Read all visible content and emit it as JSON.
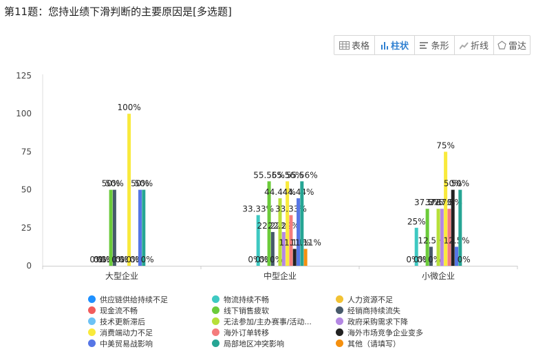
{
  "question": {
    "title": "第11题：您持业绩下滑判断的主要原因是[多选题]"
  },
  "toolbar": {
    "buttons": [
      {
        "label": "表格",
        "icon": "table-icon",
        "active": false
      },
      {
        "label": "柱状",
        "icon": "bar-chart-icon",
        "active": true
      },
      {
        "label": "条形",
        "icon": "horizontal-bar-icon",
        "active": false
      },
      {
        "label": "折线",
        "icon": "line-chart-icon",
        "active": false
      },
      {
        "label": "雷达",
        "icon": "radar-icon",
        "active": false
      }
    ]
  },
  "chart_data": {
    "type": "bar",
    "categories": [
      "大型企业",
      "中型企业",
      "小微企业"
    ],
    "ylim": [
      0,
      125
    ],
    "yticks": [
      0,
      25,
      50,
      75,
      100,
      125
    ],
    "grid": false,
    "legend_position": "bottom",
    "series": [
      {
        "name": "供应链供给持续不足",
        "color": "#1e90ff",
        "values": [
          0,
          0,
          0
        ]
      },
      {
        "name": "物流持续不畅",
        "color": "#3ec9c2",
        "values": [
          0,
          33.33,
          25
        ]
      },
      {
        "name": "人力资源不足",
        "color": "#f2c233",
        "values": [
          0,
          0,
          0
        ]
      },
      {
        "name": "现金流不畅",
        "color": "#f25c5c",
        "values": [
          0,
          0,
          0
        ]
      },
      {
        "name": "线下销售疲软",
        "color": "#6bcb3a",
        "values": [
          50,
          55.56,
          37.5
        ]
      },
      {
        "name": "经销商持续流失",
        "color": "#475a6a",
        "values": [
          50,
          22.22,
          12.5
        ]
      },
      {
        "name": "技术更新滞后",
        "color": "#6cc2f5",
        "values": [
          0,
          0,
          0
        ]
      },
      {
        "name": "无法参加/主办赛事/活动...",
        "color": "#b7e039",
        "values": [
          0,
          44.44,
          37.5
        ]
      },
      {
        "name": "政府采购需求下降",
        "color": "#b487e3",
        "values": [
          0,
          22.22,
          37.5
        ]
      },
      {
        "name": "消费端动力不足",
        "color": "#f9ea3c",
        "values": [
          100,
          55.56,
          75
        ]
      },
      {
        "name": "海外订单转移",
        "color": "#f47c7c",
        "values": [
          0,
          33.33,
          37.5
        ]
      },
      {
        "name": "海外市场竞争企业变多",
        "color": "#222222",
        "values": [
          0,
          11.11,
          50
        ]
      },
      {
        "name": "中美贸易战影响",
        "color": "#5676e6",
        "values": [
          50,
          44.44,
          12.5
        ]
      },
      {
        "name": "局部地区冲突影响",
        "color": "#26a594",
        "values": [
          50,
          55.56,
          50
        ]
      },
      {
        "name": "其他（请填写）",
        "color": "#f5900f",
        "values": [
          0,
          11.11,
          0
        ]
      }
    ],
    "data_labels": [
      [
        "0%",
        "0%",
        "0%",
        "0%",
        "50%",
        "50%",
        "0%",
        "0%",
        "0%",
        "100%",
        "0%",
        "0%",
        "50%",
        "50%",
        "0%"
      ],
      [
        "0%",
        "33.33%",
        "0%",
        "0%",
        "55.56%",
        "22.22%",
        "0%",
        "44.44%",
        "22.22%",
        "55.56%",
        "33.33%",
        "11.11%",
        "44.44%",
        "55.56%",
        "11.11%"
      ],
      [
        "0%",
        "25%",
        "0%",
        "0%",
        "37.5%",
        "12.5%",
        "0%",
        "37.5%",
        "37.5%",
        "75%",
        "37.5%",
        "50%",
        "12.5%",
        "50%",
        "0%"
      ]
    ]
  }
}
